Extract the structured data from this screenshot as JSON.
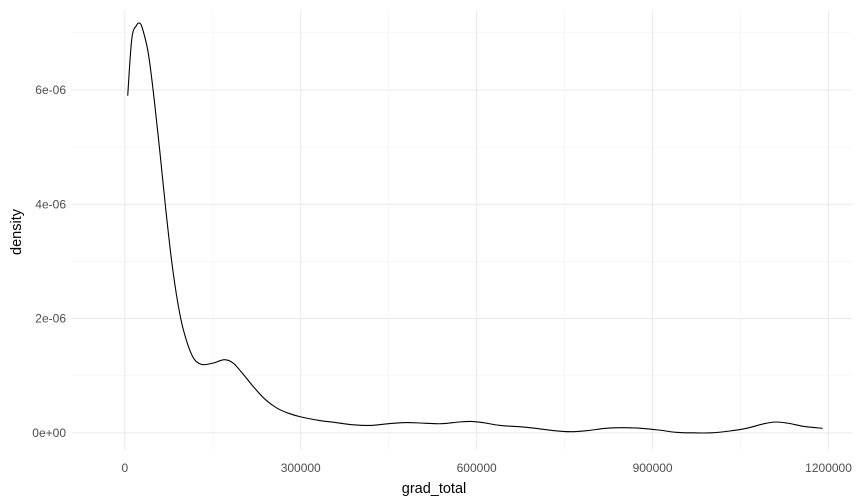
{
  "chart_data": {
    "type": "line",
    "title": "",
    "xlabel": "grad_total",
    "ylabel": "density",
    "xlim": [
      -90000,
      1240000
    ],
    "ylim": [
      -3e-07,
      7.4e-06
    ],
    "x_ticks": [
      {
        "value": 0,
        "label": "0"
      },
      {
        "value": 300000,
        "label": "300000"
      },
      {
        "value": 600000,
        "label": "600000"
      },
      {
        "value": 900000,
        "label": "900000"
      },
      {
        "value": 1200000,
        "label": "1200000"
      }
    ],
    "y_ticks": [
      {
        "value": 0,
        "label": "0e+00"
      },
      {
        "value": 2e-06,
        "label": "2e-06"
      },
      {
        "value": 4e-06,
        "label": "4e-06"
      },
      {
        "value": 6e-06,
        "label": "6e-06"
      }
    ],
    "grid": true,
    "legend": "none",
    "series": [
      {
        "x": [
          5000,
          12000,
          20000,
          25000,
          30000,
          40000,
          50000,
          60000,
          70000,
          80000,
          90000,
          100000,
          115000,
          130000,
          150000,
          170000,
          185000,
          200000,
          220000,
          240000,
          260000,
          280000,
          300000,
          330000,
          360000,
          390000,
          420000,
          450000,
          480000,
          510000,
          540000,
          570000,
          590000,
          610000,
          640000,
          670000,
          700000,
          730000,
          760000,
          790000,
          820000,
          850000,
          880000,
          910000,
          940000,
          970000,
          1000000,
          1030000,
          1060000,
          1090000,
          1110000,
          1130000,
          1160000,
          1190000
        ],
        "y": [
          5.9e-06,
          6.9e-06,
          7.13e-06,
          7.17e-06,
          7.08e-06,
          6.65e-06,
          5.85e-06,
          4.9e-06,
          3.9e-06,
          3e-06,
          2.3e-06,
          1.8e-06,
          1.35e-06,
          1.2e-06,
          1.22e-06,
          1.28e-06,
          1.22e-06,
          1.05e-06,
          8e-07,
          5.8e-07,
          4.3e-07,
          3.4e-07,
          2.8e-07,
          2.2e-07,
          1.8e-07,
          1.4e-07,
          1.3e-07,
          1.6e-07,
          1.8e-07,
          1.7e-07,
          1.6e-07,
          1.9e-07,
          2e-07,
          1.8e-07,
          1.3e-07,
          1.1e-07,
          8e-08,
          4e-08,
          2e-08,
          4e-08,
          8e-08,
          9e-08,
          8e-08,
          5e-08,
          1e-08,
          0.0,
          0.0,
          3e-08,
          8e-08,
          1.6e-07,
          1.9e-07,
          1.7e-07,
          1.1e-07,
          8e-08
        ]
      }
    ]
  }
}
